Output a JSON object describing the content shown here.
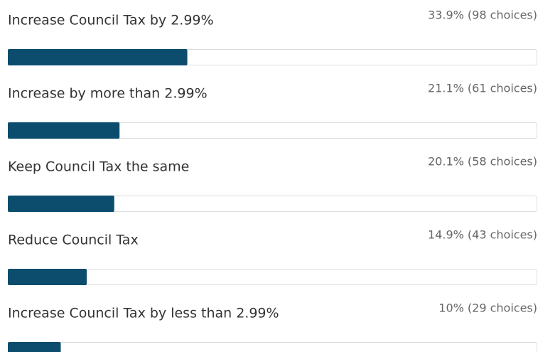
{
  "chart_data": {
    "type": "bar",
    "orientation": "horizontal",
    "categories": [
      "Increase Council Tax by 2.99%",
      "Increase by more than 2.99%",
      "Keep Council Tax the same",
      "Reduce Council Tax",
      "Increase Council Tax by less than 2.99%"
    ],
    "values": [
      33.9,
      21.1,
      20.1,
      14.9,
      10
    ],
    "value_labels": [
      "33.9% (98 choices)",
      "21.1% (61 choices)",
      "20.1% (58 choices)",
      "14.9% (43 choices)",
      "10% (29 choices)"
    ],
    "color": "#0c4d6d",
    "xlim": [
      0,
      100
    ]
  }
}
